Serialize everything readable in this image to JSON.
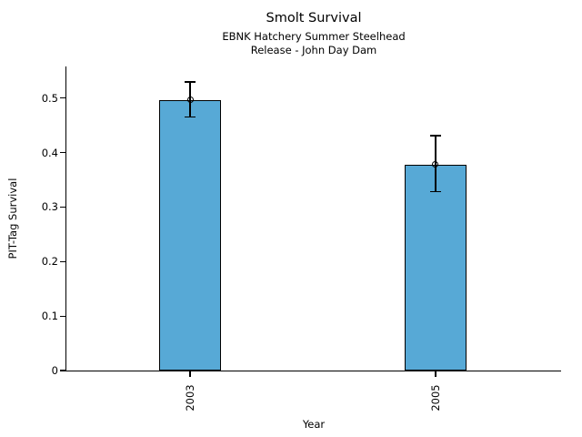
{
  "chart_data": {
    "type": "bar",
    "title": "Smolt Survival",
    "subtitle": [
      "EBNK Hatchery Summer Steelhead",
      "Release - John Day Dam"
    ],
    "xlabel": "Year",
    "ylabel": "PIT-Tag Survival",
    "categories": [
      "2003",
      "2005"
    ],
    "values": [
      0.497,
      0.378
    ],
    "error_bars": {
      "upper": [
        0.53,
        0.431
      ],
      "lower": [
        0.465,
        0.328
      ]
    },
    "yticks": [
      0,
      0.1,
      0.2,
      0.3,
      0.4,
      0.5
    ],
    "ytick_labels": [
      "0",
      "0.1",
      "0.2",
      "0.3",
      "0.4",
      "0.5"
    ],
    "ylim": [
      0,
      0.558
    ],
    "grid": false,
    "legend": "none",
    "bar_color": "#57a9d6",
    "bar_edge_color": "#000000",
    "error_bar_color": "#000000",
    "marker": "open-circle",
    "x_tick_label_rotation": 90,
    "background_color": "#ffffff"
  }
}
